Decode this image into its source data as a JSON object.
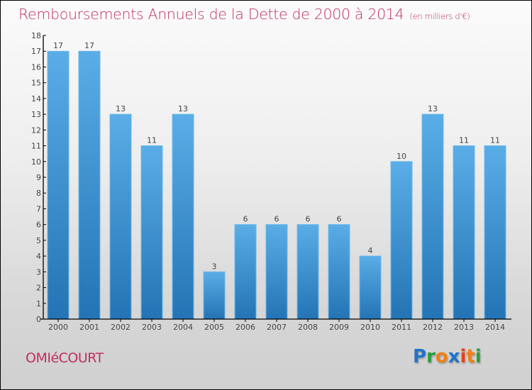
{
  "header": {
    "title": "Remboursements Annuels de la Dette de 2000 à 2014",
    "unit": "(en milliers d'€)"
  },
  "footer": {
    "commune": "OMIéCOURT",
    "logo": {
      "letters": [
        "P",
        "r",
        "o",
        "x",
        "i",
        "t",
        "i"
      ],
      "colors": [
        "#1f74c8",
        "#2a9d3c",
        "#f07f14",
        "#1f74c8",
        "#e8401c",
        "#f07f14",
        "#2a9d3c"
      ]
    }
  },
  "colors": {
    "title": "#c0305f",
    "bar_top": "#5aade6",
    "bar_bottom": "#2474b5",
    "axis": "#000000"
  },
  "chart_data": {
    "type": "bar",
    "title": "Remboursements Annuels de la Dette de 2000 à 2014 (en milliers d'€)",
    "xlabel": "",
    "ylabel": "",
    "categories": [
      "2000",
      "2001",
      "2002",
      "2003",
      "2004",
      "2005",
      "2006",
      "2007",
      "2008",
      "2009",
      "2010",
      "2011",
      "2012",
      "2013",
      "2014"
    ],
    "values": [
      17,
      17,
      13,
      11,
      13,
      3,
      6,
      6,
      6,
      6,
      4,
      10,
      13,
      11,
      11
    ],
    "ylim": [
      0,
      18
    ],
    "yticks": [
      0,
      1,
      2,
      3,
      4,
      5,
      6,
      7,
      8,
      9,
      10,
      11,
      12,
      13,
      14,
      15,
      16,
      17,
      18
    ],
    "grid": false,
    "legend": "none",
    "data_labels": true
  }
}
